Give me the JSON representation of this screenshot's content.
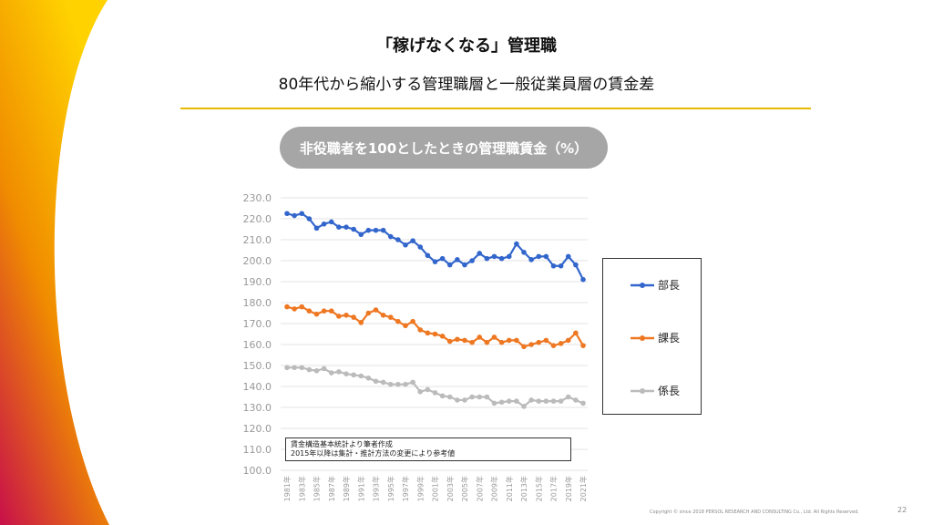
{
  "header": {
    "title": "「稼げなくなる」管理職",
    "subtitle": "80年代から縮小する管理職層と一般従業員層の賃金差"
  },
  "chart_data": {
    "type": "line",
    "title": "非役職者を100としたときの管理職賃金（%）",
    "ylim": [
      100,
      230
    ],
    "yticks": [
      "100.0",
      "110.0",
      "120.0",
      "130.0",
      "140.0",
      "150.0",
      "160.0",
      "170.0",
      "180.0",
      "190.0",
      "200.0",
      "210.0",
      "220.0",
      "230.0"
    ],
    "x": [
      1981,
      1982,
      1983,
      1984,
      1985,
      1986,
      1987,
      1988,
      1989,
      1990,
      1991,
      1992,
      1993,
      1994,
      1995,
      1996,
      1997,
      1998,
      1999,
      2000,
      2001,
      2002,
      2003,
      2004,
      2005,
      2006,
      2007,
      2008,
      2009,
      2010,
      2011,
      2012,
      2013,
      2014,
      2015,
      2016,
      2017,
      2018,
      2019,
      2020,
      2021
    ],
    "xtick_labels": [
      "1981年",
      "1983年",
      "1985年",
      "1987年",
      "1989年",
      "1991年",
      "1993年",
      "1995年",
      "1997年",
      "1999年",
      "2001年",
      "2003年",
      "2005年",
      "2007年",
      "2009年",
      "2011年",
      "2013年",
      "2015年",
      "2017年",
      "2019年",
      "2021年"
    ],
    "grid": true,
    "legend": "right",
    "series": [
      {
        "name": "部長",
        "color": "#3366cc",
        "values": [
          222.5,
          221.5,
          222.5,
          220,
          215.5,
          217.5,
          218.5,
          216,
          216,
          215,
          212.5,
          214.5,
          214.5,
          214.5,
          211.5,
          210,
          207.5,
          209.5,
          206.5,
          202.5,
          199.5,
          201,
          198,
          200.5,
          198,
          200,
          203.5,
          201,
          202,
          201,
          202,
          208,
          204,
          200.5,
          202,
          202,
          197.5,
          197.5,
          202,
          198,
          191
        ]
      },
      {
        "name": "課長",
        "color": "#ee7722",
        "values": [
          178,
          177,
          178,
          176,
          174.5,
          176,
          176,
          173.5,
          174,
          173,
          170.5,
          175,
          176.5,
          174,
          173,
          171,
          169,
          171,
          167,
          165.5,
          165,
          164,
          161.5,
          162.5,
          162,
          161,
          163.5,
          161,
          163.5,
          161,
          162,
          162,
          159,
          160,
          161,
          162,
          159.5,
          160.5,
          162,
          165.5,
          159.5
        ]
      },
      {
        "name": "係長",
        "color": "#bbbbbb",
        "values": [
          149,
          149,
          149,
          148,
          147.5,
          148.5,
          146.5,
          147,
          146,
          145.5,
          145,
          144,
          142.5,
          142,
          141,
          141,
          141,
          142,
          137.5,
          138.5,
          137,
          135.5,
          135,
          133.5,
          133.5,
          135,
          135,
          135,
          132,
          132.5,
          133,
          133,
          130.5,
          133.5,
          133,
          133,
          133,
          133,
          135,
          133.5,
          132
        ]
      }
    ],
    "note": [
      "賃金構造基本統計より筆者作成",
      "2015年以降は集計・推計方法の変更により参考値"
    ]
  },
  "footer": {
    "copyright": "Copyright © since 2018 PERSOL RESEARCH AND CONSULTING Co., Ltd. All Rights Reserved.",
    "page": "22"
  },
  "colors": {
    "accent": "#e8b800",
    "swoosh": [
      "#c8104a",
      "#f08c00",
      "#ffd200"
    ]
  }
}
